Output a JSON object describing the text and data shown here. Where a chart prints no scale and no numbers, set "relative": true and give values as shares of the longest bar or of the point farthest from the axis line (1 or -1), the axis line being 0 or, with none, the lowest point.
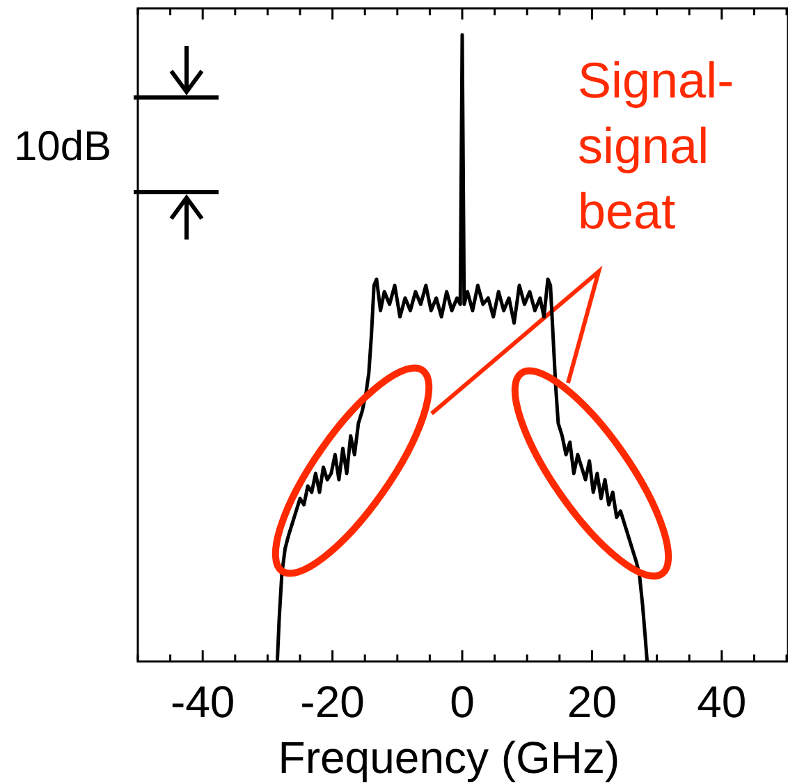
{
  "chart_data": {
    "type": "line",
    "relative": true,
    "xlabel": "Frequency (GHz)",
    "xlim": [
      -50,
      50
    ],
    "xticks": [
      {
        "value": -50,
        "label": null
      },
      {
        "value": -45,
        "label": null
      },
      -40,
      {
        "value": -35,
        "label": null
      },
      {
        "value": -30,
        "label": null
      },
      {
        "value": -25,
        "label": null
      },
      -20,
      {
        "value": -15,
        "label": null
      },
      {
        "value": -10,
        "label": null
      },
      {
        "value": -5,
        "label": null
      },
      0,
      {
        "value": 5,
        "label": null
      },
      {
        "value": 10,
        "label": null
      },
      {
        "value": 15,
        "label": null
      },
      20,
      {
        "value": 25,
        "label": null
      },
      {
        "value": 30,
        "label": null
      },
      {
        "value": 35,
        "label": null
      },
      40,
      {
        "value": 45,
        "label": null
      },
      {
        "value": 50,
        "label": null
      }
    ],
    "annotations": [
      "10dB",
      "Signal-\nsignal\nbeat"
    ],
    "series": [
      {
        "color": "#000000",
        "x": [
          -28.5,
          -28.2,
          -27.8,
          -27.3,
          -26.8,
          -26.2,
          -25.6,
          -25,
          -24.4,
          -23.8,
          -23.2,
          -22.6,
          -22,
          -21.4,
          -20.8,
          -20.2,
          -19.6,
          -19,
          -18.4,
          -17.8,
          -17.2,
          -16.6,
          -16,
          -15.4,
          -14.8,
          -14.4,
          -14,
          -13.6,
          -13.2,
          -12.6,
          -12,
          -11.2,
          -10.4,
          -9.6,
          -8.8,
          -8,
          -7.2,
          -6.4,
          -5.6,
          -4.8,
          -4,
          -3.2,
          -2.4,
          -1.6,
          -0.8,
          -0.3,
          0,
          0.3,
          0.8,
          1.6,
          2.4,
          3.2,
          4,
          4.8,
          5.6,
          6.4,
          7.2,
          8,
          8.8,
          9.6,
          10.4,
          11.2,
          12,
          12.6,
          13.2,
          13.6,
          14,
          14.4,
          14.8,
          15.4,
          16,
          16.6,
          17.2,
          17.8,
          18.4,
          19,
          19.6,
          20.2,
          20.8,
          21.4,
          22,
          22.6,
          23.2,
          23.8,
          24.4,
          25,
          25.6,
          26.2,
          26.8,
          27.3,
          27.8,
          28.2,
          28.5
        ],
        "values": [
          0,
          0.07,
          0.14,
          0.18,
          0.2,
          0.22,
          0.24,
          0.26,
          0.25,
          0.28,
          0.27,
          0.3,
          0.27,
          0.31,
          0.29,
          0.3,
          0.33,
          0.29,
          0.34,
          0.3,
          0.36,
          0.33,
          0.38,
          0.4,
          0.43,
          0.46,
          0.52,
          0.6,
          0.61,
          0.56,
          0.59,
          0.57,
          0.6,
          0.55,
          0.58,
          0.56,
          0.59,
          0.57,
          0.6,
          0.56,
          0.58,
          0.55,
          0.59,
          0.56,
          0.58,
          0.57,
          1,
          0.57,
          0.59,
          0.56,
          0.6,
          0.57,
          0.58,
          0.55,
          0.59,
          0.56,
          0.58,
          0.54,
          0.6,
          0.57,
          0.59,
          0.56,
          0.58,
          0.55,
          0.61,
          0.6,
          0.52,
          0.44,
          0.38,
          0.36,
          0.33,
          0.35,
          0.3,
          0.33,
          0.31,
          0.29,
          0.32,
          0.27,
          0.3,
          0.26,
          0.29,
          0.25,
          0.27,
          0.23,
          0.24,
          0.22,
          0.2,
          0.18,
          0.16,
          0.14,
          0.09,
          0.04,
          0
        ]
      }
    ]
  }
}
